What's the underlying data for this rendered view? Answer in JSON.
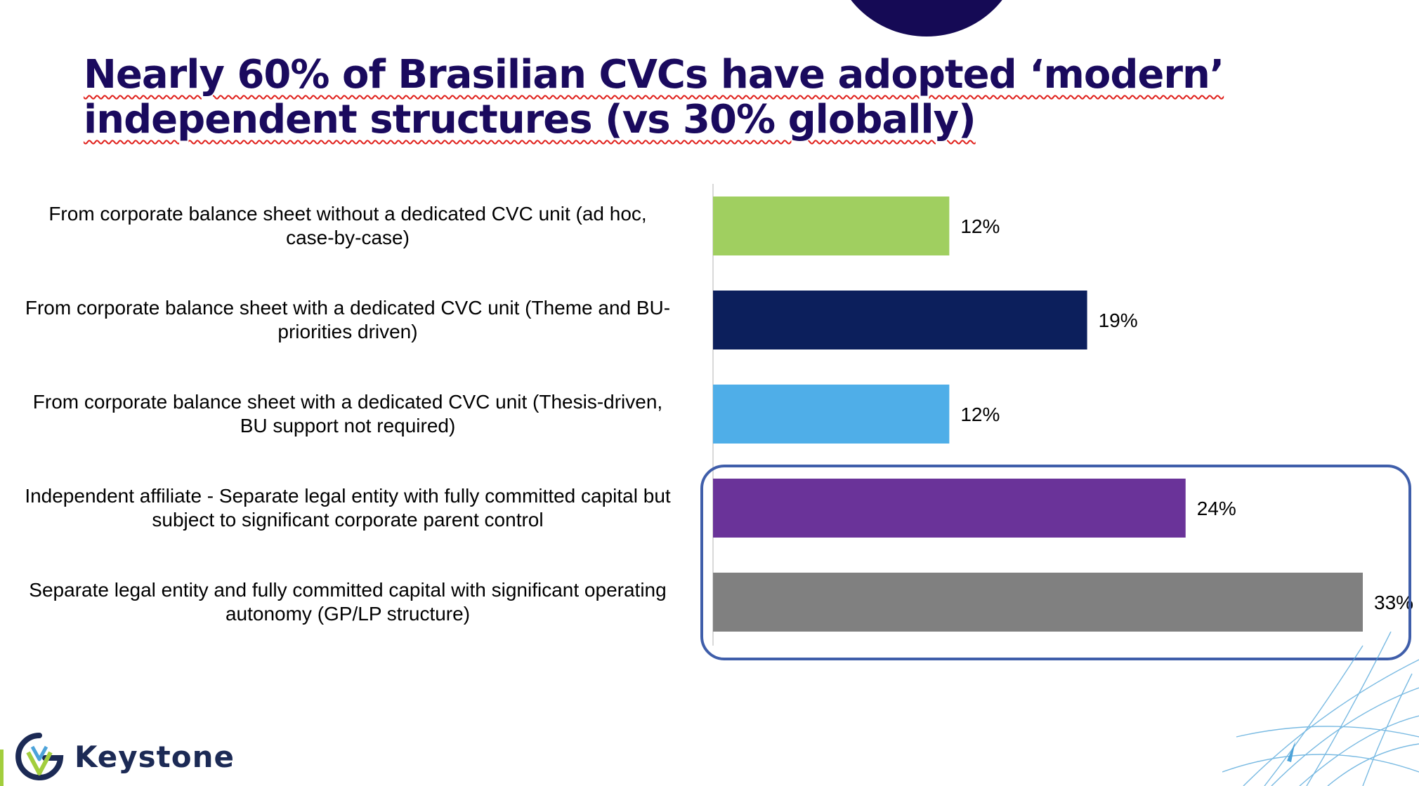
{
  "title": {
    "line1": "Nearly 60% of Brasilian CVCs have adopted ‘modern’",
    "line2": "independent structures (vs 30% globally)"
  },
  "chart_data": {
    "type": "bar",
    "orientation": "horizontal",
    "categories": [
      "From corporate balance sheet without a dedicated CVC unit (ad hoc, case-by-case)",
      "From corporate balance sheet with a dedicated CVC unit (Theme and BU-priorities driven)",
      "From corporate balance sheet with a dedicated CVC unit (Thesis-driven, BU support not required)",
      "Independent affiliate - Separate legal entity with fully committed capital but subject to significant corporate parent control",
      "Separate legal entity and fully committed capital with significant operating autonomy (GP/LP structure)"
    ],
    "label_lines": [
      [
        "From corporate balance sheet without a dedicated CVC unit (ad hoc,",
        "case-by-case)"
      ],
      [
        "From corporate balance sheet with a dedicated CVC unit (Theme and BU-",
        "priorities driven)"
      ],
      [
        "From corporate balance sheet with a dedicated CVC unit (Thesis-driven,",
        "BU support not required)"
      ],
      [
        "Independent affiliate - Separate legal entity with fully committed capital but",
        "subject to significant corporate parent control"
      ],
      [
        "Separate legal entity and fully committed capital with significant operating",
        "autonomy (GP/LP structure)"
      ]
    ],
    "values": [
      12,
      19,
      12,
      24,
      33
    ],
    "value_labels": [
      "12%",
      "19%",
      "12%",
      "24%",
      "33%"
    ],
    "colors": [
      "#a0cf60",
      "#0c1f5c",
      "#4faee8",
      "#6a3399",
      "#808080"
    ],
    "unit": "%",
    "xlim": [
      0,
      33
    ],
    "highlight": "last two bars outlined",
    "grid": false
  },
  "colors": {
    "title": "#1a0a5e",
    "highlight_border": "#3f5eaa",
    "brand": "#1c2a55",
    "accent_green": "#a2ce3d"
  },
  "logo": {
    "text": "Keystone"
  }
}
